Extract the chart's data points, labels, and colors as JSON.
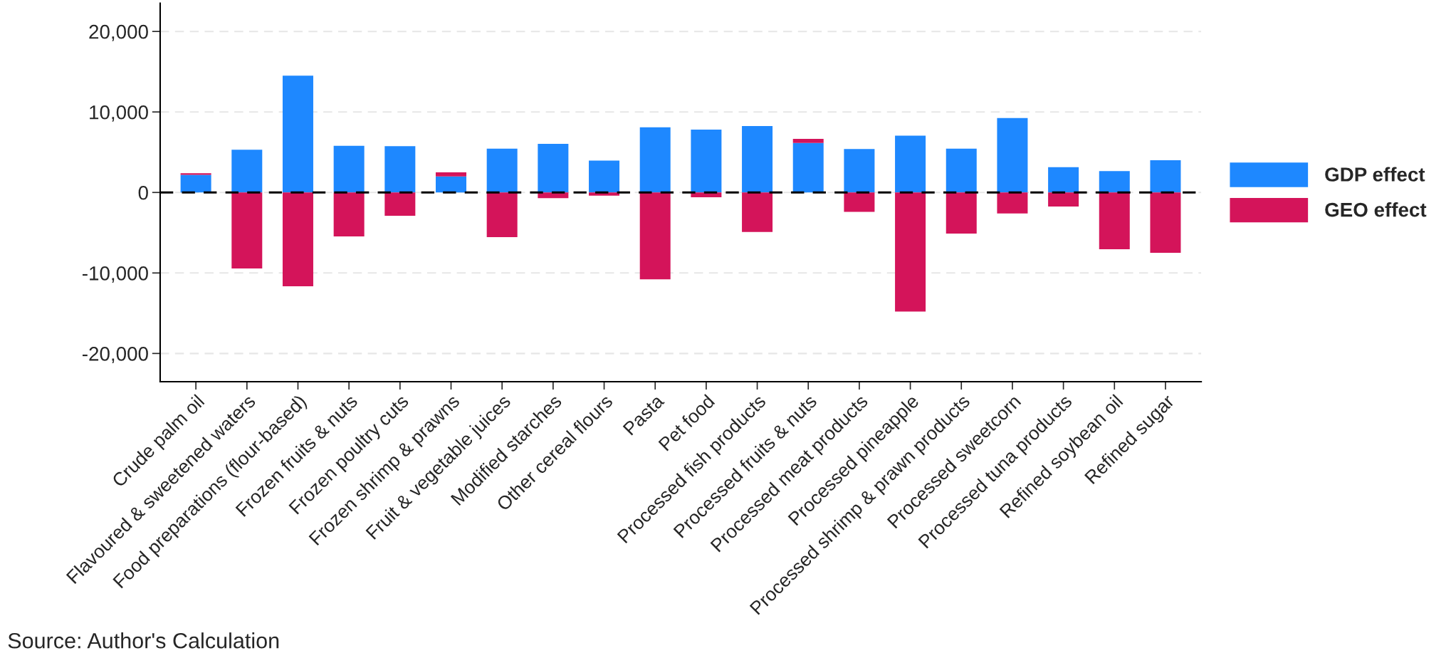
{
  "chart_data": {
    "type": "bar",
    "stacked": true,
    "categories": [
      "Crude palm oil",
      "Flavoured & sweetened waters",
      "Food preparations (flour-based)",
      "Frozen fruits & nuts",
      "Frozen poultry cuts",
      "Frozen shrimp & prawns",
      "Fruit & vegetable juices",
      "Modified starches",
      "Other cereal flours",
      "Pasta",
      "Pet food",
      "Processed fish products",
      "Processed fruits & nuts",
      "Processed meat products",
      "Processed pineapple",
      "Processed shrimp & prawn products",
      "Processed sweetcorn",
      "Processed tuna products",
      "Refined soybean oil",
      "Refined sugar"
    ],
    "series": [
      {
        "name": "GDP effect",
        "color": "#1e88ff",
        "values": [
          2200,
          5300,
          14500,
          5800,
          5750,
          2000,
          5450,
          6050,
          3950,
          8100,
          7800,
          8250,
          6150,
          5400,
          7050,
          5450,
          9250,
          3150,
          2650,
          4000
        ]
      },
      {
        "name": "GEO effect",
        "color": "#d4145a",
        "values": [
          200,
          -9450,
          -11650,
          -5450,
          -2900,
          500,
          -5550,
          -700,
          -400,
          -10800,
          -600,
          -4900,
          500,
          -2400,
          -14800,
          -5100,
          -2600,
          -1750,
          -7050,
          -7500
        ]
      }
    ],
    "ylim": [
      -23500,
      23500
    ],
    "yticks": [
      {
        "value": -20000,
        "label": "-20,000"
      },
      {
        "value": -10000,
        "label": "-10,000"
      },
      0,
      {
        "value": 10000,
        "label": "10,000"
      },
      {
        "value": 20000,
        "label": "20,000"
      }
    ],
    "grid": "y",
    "legend": "right",
    "ref_lines": [
      {
        "axis": "y",
        "value": 0,
        "label": null,
        "color": "#000000",
        "line_style": "dashed"
      }
    ],
    "annotations": [
      "Source: Author's Calculation"
    ]
  }
}
